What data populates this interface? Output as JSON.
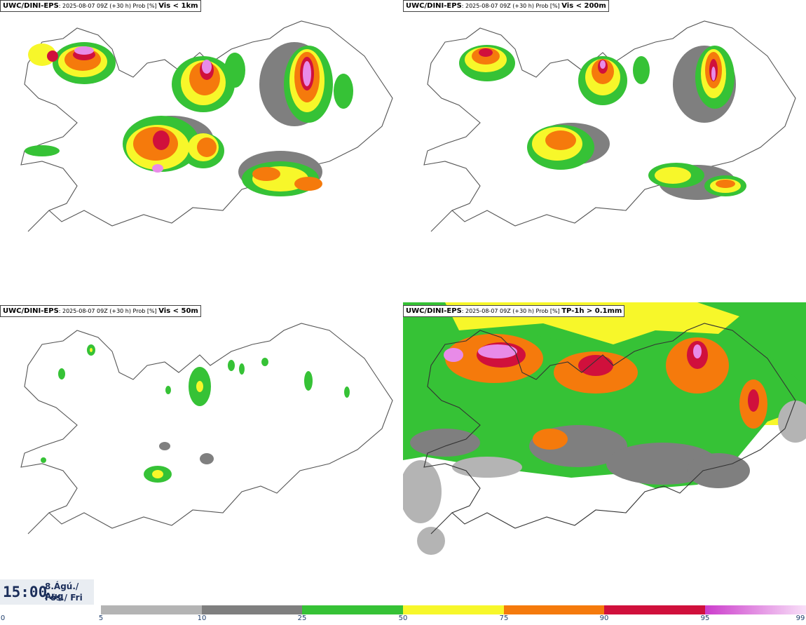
{
  "panels": [
    {
      "source": "UWC/DINI-EPS",
      "meta": ": 2025-08-07 09Z (+30 h) Prob [%] ",
      "variable": "Vis < 1km"
    },
    {
      "source": "UWC/DINI-EPS",
      "meta": ": 2025-08-07 09Z (+30 h) Prob [%] ",
      "variable": "Vis < 200m"
    },
    {
      "source": "UWC/DINI-EPS",
      "meta": ": 2025-08-07 09Z (+30 h) Prob [%] ",
      "variable": "Vis < 50m"
    },
    {
      "source": "UWC/DINI-EPS",
      "meta": ": 2025-08-07 09Z (+30 h) Prob [%] ",
      "variable": "TP-1h > 0.1mm"
    }
  ],
  "valid_time": {
    "time": "15:00",
    "date_line": "8.Ágú./ Aug",
    "day_line": "Fös./ Fri"
  },
  "colorbar": {
    "ticks": [
      "0",
      "5",
      "10",
      "25",
      "50",
      "75",
      "90",
      "95",
      "99"
    ],
    "colors": {
      "5-10": "#b4b4b4",
      "10-25": "#7f7f7f",
      "25-50": "#36c236",
      "50-75": "#f7f72a",
      "75-90": "#f57a0c",
      "90-95": "#d0103c",
      "95-99": "#cc3dcc"
    }
  }
}
